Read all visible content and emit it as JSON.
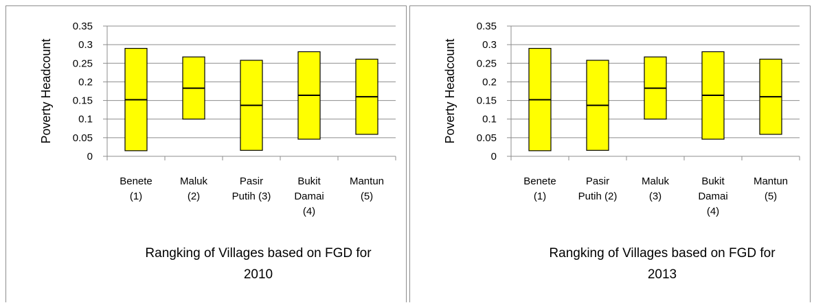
{
  "colors": {
    "box_fill": "#ffff00",
    "box_stroke": "#000000",
    "grid": "#8c8c8c",
    "axis": "#8c8c8c"
  },
  "chart_data": [
    {
      "type": "box",
      "title": "",
      "xlabel_lines": [
        "Rangking of Villages based on FGD for",
        "2010"
      ],
      "ylabel": "Poverty Headcount",
      "ylim": [
        0,
        0.35
      ],
      "yticks": [
        "0",
        "0.05",
        "0.1",
        "0.15",
        "0.2",
        "0.25",
        "0.3",
        "0.35"
      ],
      "grid": true,
      "categories": [
        {
          "lines": [
            "Benete",
            "(1)"
          ],
          "min": 0.015,
          "median": 0.152,
          "max": 0.29
        },
        {
          "lines": [
            "Maluk",
            "(2)"
          ],
          "min": 0.1,
          "median": 0.183,
          "max": 0.267
        },
        {
          "lines": [
            "Pasir",
            "Putih (3)"
          ],
          "min": 0.016,
          "median": 0.137,
          "max": 0.258
        },
        {
          "lines": [
            "Bukit",
            "Damai",
            "(4)"
          ],
          "min": 0.046,
          "median": 0.164,
          "max": 0.281
        },
        {
          "lines": [
            "Mantun",
            "(5)"
          ],
          "min": 0.059,
          "median": 0.16,
          "max": 0.261
        }
      ]
    },
    {
      "type": "box",
      "title": "",
      "xlabel_lines": [
        "Rangking of Villages based on FGD for",
        "2013"
      ],
      "ylabel": "Poverty Headcount",
      "ylim": [
        0,
        0.35
      ],
      "yticks": [
        "0",
        "0.05",
        "0.1",
        "0.15",
        "0.2",
        "0.25",
        "0.3",
        "0.35"
      ],
      "grid": true,
      "categories": [
        {
          "lines": [
            "Benete",
            "(1)"
          ],
          "min": 0.015,
          "median": 0.152,
          "max": 0.29
        },
        {
          "lines": [
            "Pasir",
            "Putih (2)"
          ],
          "min": 0.016,
          "median": 0.137,
          "max": 0.258
        },
        {
          "lines": [
            "Maluk",
            "(3)"
          ],
          "min": 0.1,
          "median": 0.183,
          "max": 0.267
        },
        {
          "lines": [
            "Bukit",
            "Damai",
            "(4)"
          ],
          "min": 0.046,
          "median": 0.164,
          "max": 0.281
        },
        {
          "lines": [
            "Mantun",
            "(5)"
          ],
          "min": 0.059,
          "median": 0.16,
          "max": 0.261
        }
      ]
    }
  ]
}
